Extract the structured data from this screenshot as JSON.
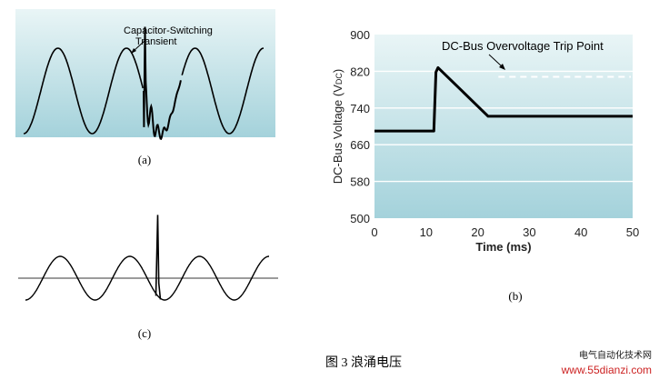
{
  "caption": "图 3   浪涌电压",
  "watermark": {
    "line1": "电气自动化技术网",
    "line2": "www.55dianzi.com"
  },
  "colors": {
    "panel_top": "#e9f5f6",
    "panel_bottom": "#a4d2db",
    "trace": "#000000",
    "axis_c": "#7a7a7a",
    "grid": "#ffffff",
    "watermark_top": "#1a1a1a",
    "watermark_bottom": "#cc2222"
  },
  "chart_data": [
    {
      "id": "a",
      "type": "line",
      "label": "(a)",
      "annotation": "Capacitor-Switching Transient",
      "annotation_lines": [
        "Capacitor-Switching",
        "Transient"
      ],
      "cycles": 3.5,
      "transient_at_cycle": 1.75,
      "transient_peak": 1.5,
      "transient_dip": -0.85,
      "grid": "none"
    },
    {
      "id": "b",
      "type": "line",
      "label": "(b)",
      "title": "",
      "xlabel": "Time (ms)",
      "ylabel_main": "DC-Bus Voltage (V",
      "ylabel_sub": "DC",
      "ylabel_end": ")",
      "xlim": [
        0,
        50
      ],
      "ylim": [
        500,
        900
      ],
      "xticks": [
        0,
        10,
        20,
        30,
        40,
        50
      ],
      "yticks": [
        500,
        580,
        660,
        740,
        820,
        900
      ],
      "grid": "horizontal",
      "series": [
        {
          "x": [
            0,
            11.5,
            11.9,
            12.3,
            22,
            50
          ],
          "y": [
            690,
            690,
            818,
            828,
            722,
            722
          ]
        }
      ],
      "reference_line": {
        "y": 808,
        "label": "DC-Bus Overvoltage Trip Point",
        "style": "dashed"
      }
    },
    {
      "id": "c",
      "type": "line",
      "label": "(c)",
      "cycles": 3.5,
      "spike_at_cycle": 1.9,
      "spike_height": 2.9,
      "grid": "none"
    }
  ]
}
